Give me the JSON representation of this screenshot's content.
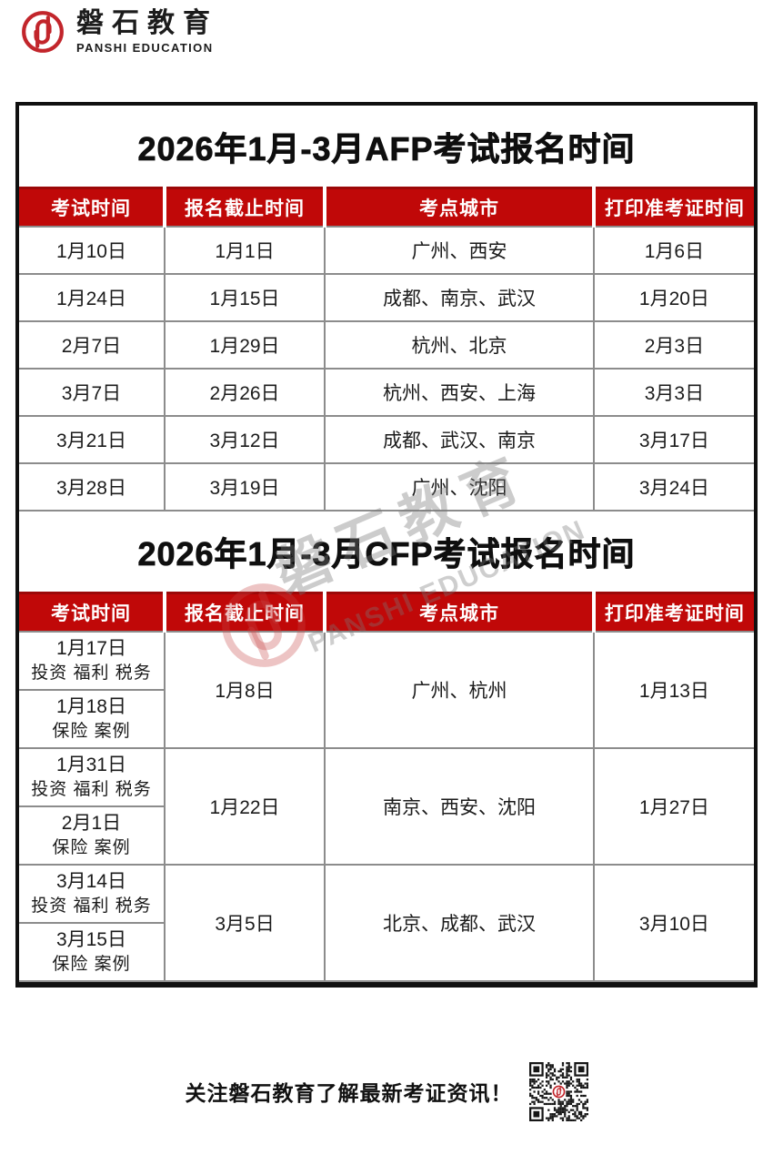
{
  "brand": {
    "name_cn": "磐石教育",
    "name_en": "PANSHI EDUCATION"
  },
  "colors": {
    "header_red": "#c00808",
    "header_red_dark": "#9c0808",
    "border_gray": "#8c8c8c",
    "frame_black": "#101010",
    "logo_red": "#c2252b"
  },
  "afp_table": {
    "title": "2026年1月-3月AFP考试报名时间",
    "columns": [
      "考试时间",
      "报名截止时间",
      "考点城市",
      "打印准考证时间"
    ],
    "rows": [
      [
        "1月10日",
        "1月1日",
        "广州、西安",
        "1月6日"
      ],
      [
        "1月24日",
        "1月15日",
        "成都、南京、武汉",
        "1月20日"
      ],
      [
        "2月7日",
        "1月29日",
        "杭州、北京",
        "2月3日"
      ],
      [
        "3月7日",
        "2月26日",
        "杭州、西安、上海",
        "3月3日"
      ],
      [
        "3月21日",
        "3月12日",
        "成都、武汉、南京",
        "3月17日"
      ],
      [
        "3月28日",
        "3月19日",
        "广州、沈阳",
        "3月24日"
      ]
    ]
  },
  "cfp_table": {
    "title": "2026年1月-3月CFP考试报名时间",
    "columns": [
      "考试时间",
      "报名截止时间",
      "考点城市",
      "打印准考证时间"
    ],
    "groups": [
      {
        "exams": [
          {
            "date": "1月17日",
            "subjects": "投资 福利 税务"
          },
          {
            "date": "1月18日",
            "subjects": "保险 案例"
          }
        ],
        "deadline": "1月8日",
        "cities": "广州、杭州",
        "print_time": "1月13日"
      },
      {
        "exams": [
          {
            "date": "1月31日",
            "subjects": "投资 福利 税务"
          },
          {
            "date": "2月1日",
            "subjects": "保险 案例"
          }
        ],
        "deadline": "1月22日",
        "cities": "南京、西安、沈阳",
        "print_time": "1月27日"
      },
      {
        "exams": [
          {
            "date": "3月14日",
            "subjects": "投资 福利 税务"
          },
          {
            "date": "3月15日",
            "subjects": "保险 案例"
          }
        ],
        "deadline": "3月5日",
        "cities": "北京、成都、武汉",
        "print_time": "3月10日"
      }
    ]
  },
  "watermark": {
    "text_cn": "磐石教育",
    "text_en": "PANSHI EDUCATION"
  },
  "footer": {
    "text": "关注磐石教育了解最新考证资讯！"
  }
}
